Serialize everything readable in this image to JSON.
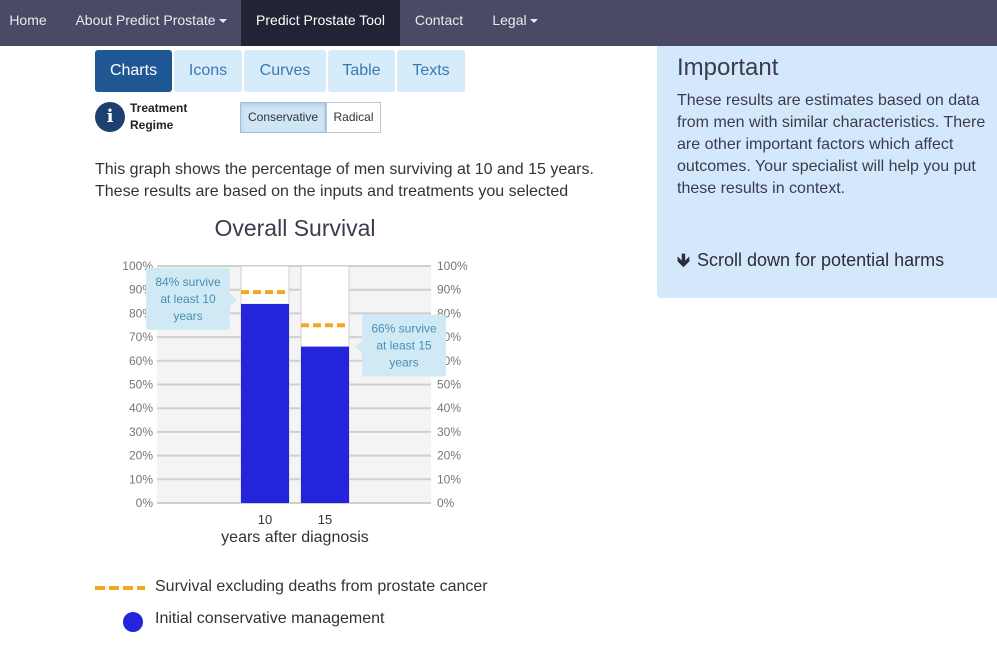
{
  "nav": {
    "home": "Home",
    "about": "About Predict Prostate",
    "tool": "Predict Prostate Tool",
    "contact": "Contact",
    "legal": "Legal"
  },
  "tabs": [
    "Charts",
    "Icons",
    "Curves",
    "Table",
    "Texts"
  ],
  "regime": {
    "label": "Treatment Regime",
    "options": [
      "Conservative",
      "Radical"
    ],
    "selected": "Conservative"
  },
  "description": {
    "line1": "This graph shows the percentage of men surviving at 10 and 15 years.",
    "line2": "These results are based on the inputs and treatments you selected"
  },
  "chart_data": {
    "type": "bar",
    "title": "Overall Survival",
    "xlabel": "years after diagnosis",
    "ylabel": "",
    "categories": [
      "10",
      "15"
    ],
    "series": [
      {
        "name": "Initial conservative management",
        "values": [
          84,
          66
        ],
        "color": "#2424dd"
      },
      {
        "name": "Survival excluding deaths from prostate cancer",
        "values": [
          89,
          75
        ],
        "color": "#f5a623",
        "style": "dashed-marker"
      }
    ],
    "ylim": [
      0,
      100
    ],
    "yticks": [
      "0%",
      "10%",
      "20%",
      "30%",
      "40%",
      "50%",
      "60%",
      "70%",
      "80%",
      "90%",
      "100%"
    ],
    "grid": true,
    "annotations": [
      {
        "category": "10",
        "lines": [
          "84% survive",
          "at least 10",
          "years"
        ],
        "side": "left"
      },
      {
        "category": "15",
        "lines": [
          "66% survive",
          "at least 15",
          "years"
        ],
        "side": "right"
      }
    ]
  },
  "legend": {
    "dashed": "Survival excluding deaths from prostate cancer",
    "dot": "Initial conservative management"
  },
  "panel": {
    "title": "Important",
    "text": "These results are estimates based on data from men with similar characteristics. There are other important factors which affect outcomes. Your specialist will help you put these results in context.",
    "link": "Scroll down for potential harms"
  },
  "colors": {
    "nav_bg": "#4a4a66",
    "tab_active": "#1f5794",
    "panel_bg": "#d3e9fb",
    "bar": "#2424dd",
    "marker": "#f5a623",
    "callout": "#cfeaf5"
  }
}
